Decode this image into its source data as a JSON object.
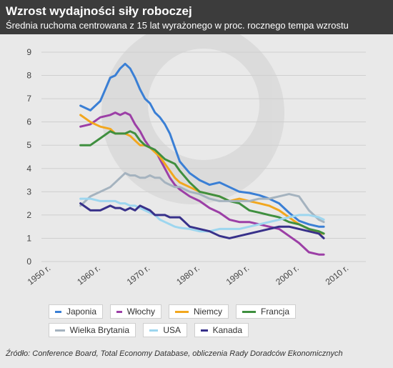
{
  "header": {
    "title": "Wzrost wydajności siły roboczej",
    "subtitle": "Średnia ruchoma centrowana z 15 lat wyrażonego w proc. rocznego tempa wzrostu"
  },
  "source": "Źródło: Conference Board, Total Economy Database, obliczenia Rady Doradców Ekonomicznych",
  "chart_data": {
    "type": "line",
    "title": "Wzrost wydajności siły roboczej",
    "subtitle": "Średnia ruchoma centrowana z 15 lat wyrażonego w proc. rocznego tempa wzrostu",
    "xlabel": "",
    "ylabel": "",
    "xlim": [
      1950,
      2010
    ],
    "ylim": [
      0,
      9
    ],
    "grid": true,
    "legend_position": "bottom",
    "y_ticks": [
      "0",
      "1",
      "2",
      "3",
      "4",
      "5",
      "6",
      "7",
      "8",
      "9"
    ],
    "x_ticks": [
      "1950 r.",
      "1960 r.",
      "1970 r.",
      "1980 r.",
      "1990 r.",
      "2000 r.",
      "2010 r."
    ],
    "x": [
      1958,
      1960,
      1962,
      1964,
      1965,
      1966,
      1967,
      1968,
      1969,
      1970,
      1971,
      1972,
      1973,
      1974,
      1975,
      1976,
      1977,
      1978,
      1980,
      1982,
      1984,
      1986,
      1988,
      1990,
      1992,
      1994,
      1996,
      1998,
      2000,
      2002,
      2004,
      2006,
      2007
    ],
    "series": [
      {
        "name": "Japonia",
        "color": "#3a7fd5",
        "values": [
          6.7,
          6.5,
          6.9,
          7.9,
          8.0,
          8.3,
          8.5,
          8.3,
          7.9,
          7.4,
          7.0,
          6.8,
          6.4,
          6.2,
          5.9,
          5.5,
          4.9,
          4.3,
          3.8,
          3.5,
          3.3,
          3.4,
          3.2,
          3.0,
          2.95,
          2.85,
          2.7,
          2.5,
          2.1,
          1.75,
          1.6,
          1.5,
          1.5
        ]
      },
      {
        "name": "Włochy",
        "color": "#9c3fa6",
        "values": [
          5.8,
          5.9,
          6.2,
          6.3,
          6.4,
          6.3,
          6.4,
          6.3,
          5.9,
          5.6,
          5.2,
          4.9,
          4.8,
          4.4,
          4.0,
          3.6,
          3.3,
          3.1,
          2.8,
          2.6,
          2.3,
          2.1,
          1.8,
          1.7,
          1.7,
          1.6,
          1.5,
          1.4,
          1.1,
          0.8,
          0.4,
          0.3,
          0.3
        ]
      },
      {
        "name": "Niemcy",
        "color": "#f2a71e",
        "values": [
          6.3,
          6.0,
          5.8,
          5.7,
          5.5,
          5.5,
          5.5,
          5.4,
          5.2,
          5.0,
          5.0,
          4.9,
          4.7,
          4.5,
          4.2,
          3.9,
          3.6,
          3.4,
          3.2,
          3.0,
          2.9,
          2.8,
          2.6,
          2.7,
          2.6,
          2.5,
          2.4,
          2.2,
          1.9,
          1.6,
          1.4,
          1.2,
          1.2
        ]
      },
      {
        "name": "Francja",
        "color": "#3f8f3f",
        "values": [
          5.0,
          5.0,
          5.3,
          5.6,
          5.5,
          5.5,
          5.5,
          5.6,
          5.5,
          5.2,
          5.0,
          4.9,
          4.8,
          4.6,
          4.4,
          4.3,
          4.2,
          3.9,
          3.4,
          3.0,
          2.9,
          2.8,
          2.6,
          2.5,
          2.2,
          2.1,
          2.0,
          1.9,
          1.7,
          1.6,
          1.4,
          1.3,
          1.2
        ]
      },
      {
        "name": "Wielka Brytania",
        "color": "#a5b3bf",
        "values": [
          2.4,
          2.8,
          3.0,
          3.2,
          3.4,
          3.6,
          3.8,
          3.7,
          3.7,
          3.6,
          3.6,
          3.7,
          3.6,
          3.6,
          3.4,
          3.3,
          3.2,
          3.2,
          3.0,
          2.9,
          2.7,
          2.6,
          2.6,
          2.6,
          2.6,
          2.7,
          2.7,
          2.8,
          2.9,
          2.8,
          2.2,
          1.8,
          1.7
        ]
      },
      {
        "name": "USA",
        "color": "#9dd6ef",
        "values": [
          2.7,
          2.7,
          2.6,
          2.6,
          2.6,
          2.5,
          2.5,
          2.4,
          2.4,
          2.3,
          2.2,
          2.1,
          2.0,
          1.8,
          1.7,
          1.6,
          1.5,
          1.45,
          1.4,
          1.3,
          1.3,
          1.4,
          1.4,
          1.4,
          1.5,
          1.6,
          1.7,
          1.8,
          1.9,
          2.0,
          2.0,
          1.9,
          1.8
        ]
      },
      {
        "name": "Kanada",
        "color": "#38318a",
        "values": [
          2.5,
          2.2,
          2.2,
          2.4,
          2.3,
          2.3,
          2.2,
          2.3,
          2.2,
          2.4,
          2.3,
          2.2,
          2.0,
          2.0,
          2.0,
          1.9,
          1.9,
          1.9,
          1.5,
          1.4,
          1.3,
          1.1,
          1.0,
          1.1,
          1.2,
          1.3,
          1.4,
          1.5,
          1.5,
          1.4,
          1.3,
          1.2,
          1.0
        ]
      }
    ]
  }
}
